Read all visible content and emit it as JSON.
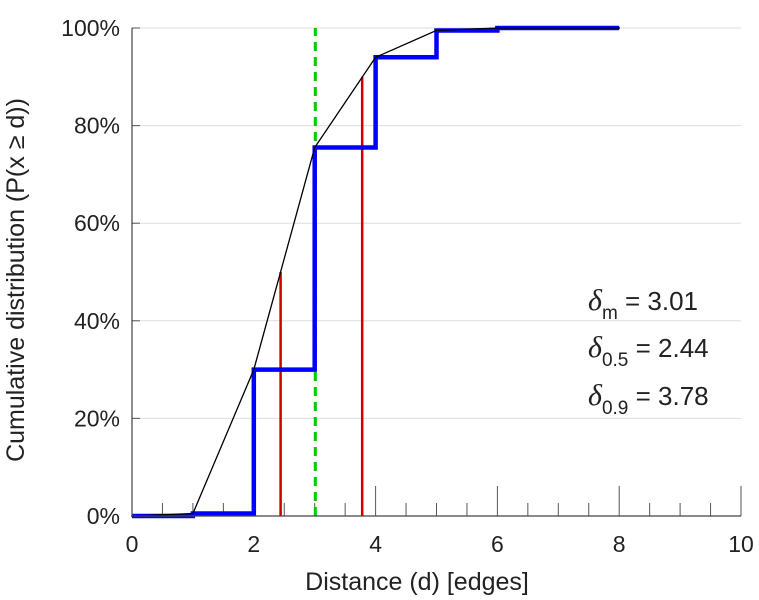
{
  "chart_data": {
    "type": "line",
    "xlabel": "Distance (d) [edges]",
    "ylabel": "Cumulative distribution (P(x ≥ d))",
    "xlim": [
      0,
      10
    ],
    "ylim": [
      0,
      100
    ],
    "x_ticks": [
      "0",
      "2",
      "4",
      "6",
      "8",
      "10"
    ],
    "y_ticks": [
      "0%",
      "20%",
      "40%",
      "60%",
      "80%",
      "100%"
    ],
    "grid": "horizontal",
    "series": [
      {
        "kind": "step",
        "color": "#0000ff",
        "x": [
          0,
          1,
          2,
          3,
          4,
          5,
          6,
          7,
          8
        ],
        "y": [
          0,
          0.5,
          30,
          75.5,
          94,
          99.5,
          100,
          100,
          100
        ]
      },
      {
        "kind": "line",
        "color": "#000000",
        "x": [
          0,
          1,
          2,
          3,
          4,
          5,
          6,
          7,
          8
        ],
        "y": [
          0,
          0.5,
          30,
          75.5,
          94,
          99.5,
          100,
          100,
          100
        ]
      }
    ],
    "vlines": [
      {
        "x": 2.44,
        "y_top": 50,
        "color": "#cc0000",
        "style": "solid"
      },
      {
        "x": 3.78,
        "y_top": 90,
        "color": "#cc0000",
        "style": "solid"
      },
      {
        "x": 3.01,
        "y_top": 100,
        "color": "#00cc00",
        "style": "dashed"
      }
    ],
    "annotations": [
      {
        "symbol": "δ",
        "sub": "m",
        "text": "= 3.01"
      },
      {
        "symbol": "δ",
        "sub": "0.5",
        "text": "= 2.44"
      },
      {
        "symbol": "δ",
        "sub": "0.9",
        "text": "= 3.78"
      }
    ]
  }
}
